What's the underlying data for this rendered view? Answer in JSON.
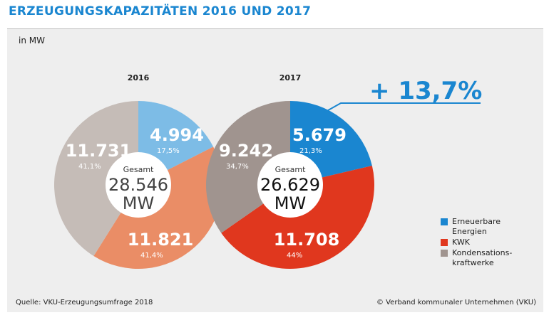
{
  "title": "ERZEUGUNGSKAPAZITÄTEN 2016 UND 2017",
  "unit_label": "in MW",
  "source": "Quelle: VKU-Erzeugungsumfrage 2018",
  "copyright": "© Verband kommunaler Unternehmen (VKU)",
  "change": "+ 13,7%",
  "chart_data": {
    "type": "pie",
    "categories": [
      "Erneuerbare Energien",
      "KWK",
      "Kondensationskraftwerke"
    ],
    "charts": [
      {
        "year": "2016",
        "total_label": "Gesamt",
        "total": "28.546",
        "total_unit": "MW",
        "slices": [
          {
            "category": "Erneuerbare Energien",
            "value": 4994,
            "label": "4.994",
            "percent": "17,5%"
          },
          {
            "category": "KWK",
            "value": 11821,
            "label": "11.821",
            "percent": "41,4%"
          },
          {
            "category": "Kondensationskraftwerke",
            "value": 11731,
            "label": "11.731",
            "percent": "41,1%"
          }
        ],
        "colors": [
          "#7dbce6",
          "#ea8d66",
          "#c5bcb7"
        ]
      },
      {
        "year": "2017",
        "total_label": "Gesamt",
        "total": "26.629",
        "total_unit": "MW",
        "slices": [
          {
            "category": "Erneuerbare Energien",
            "value": 5679,
            "label": "5.679",
            "percent": "21,3%"
          },
          {
            "category": "KWK",
            "value": 11708,
            "label": "11.708",
            "percent": "44%"
          },
          {
            "category": "Kondensationskraftwerke",
            "value": 9242,
            "label": "9.242",
            "percent": "34,7%"
          }
        ],
        "colors": [
          "#1a86d0",
          "#e0371e",
          "#a0948f"
        ]
      }
    ]
  },
  "legend": [
    {
      "label": "Erneuerbare Energien",
      "color": "#1a86d0"
    },
    {
      "label": "KWK",
      "color": "#e0371e"
    },
    {
      "label": "Kondensations-kraftwerke",
      "color": "#a0948f"
    }
  ],
  "accent_color": "#1a86d0"
}
